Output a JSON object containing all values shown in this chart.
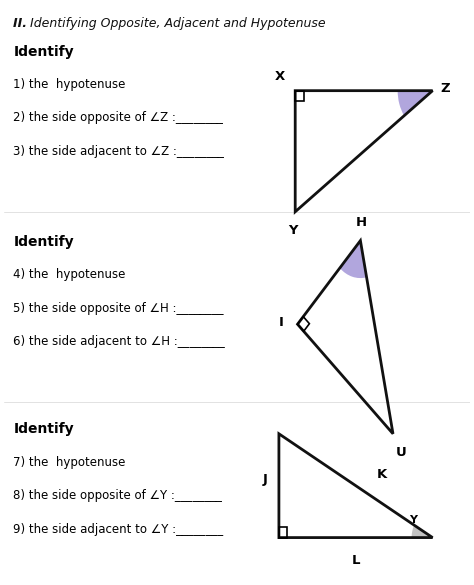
{
  "bg_color": "#ffffff",
  "title_bold": "II. ",
  "title_italic": "Identifying Opposite, Adjacent and Hypotenuse",
  "sections": [
    {
      "label": "Identify",
      "questions": [
        "1) the  hypotenuse",
        "2) the side opposite of ∠Z :________",
        "3) the side adjacent to ∠Z :________"
      ]
    },
    {
      "label": "Identify",
      "questions": [
        "4) the  hypotenuse",
        "5) the side opposite of ∠H :________",
        "6) the side adjacent to ∠H :________"
      ]
    },
    {
      "label": "Identify",
      "questions": [
        "7) the  hypotenuse",
        "8) the side opposite of ∠Y :________",
        "9) the side adjacent to ∠Y :________"
      ]
    }
  ],
  "arc_color_purple": "#8877cc",
  "arc_color_grey": "#aaaaaa",
  "line_color": "#111111",
  "text_color": "#111111"
}
